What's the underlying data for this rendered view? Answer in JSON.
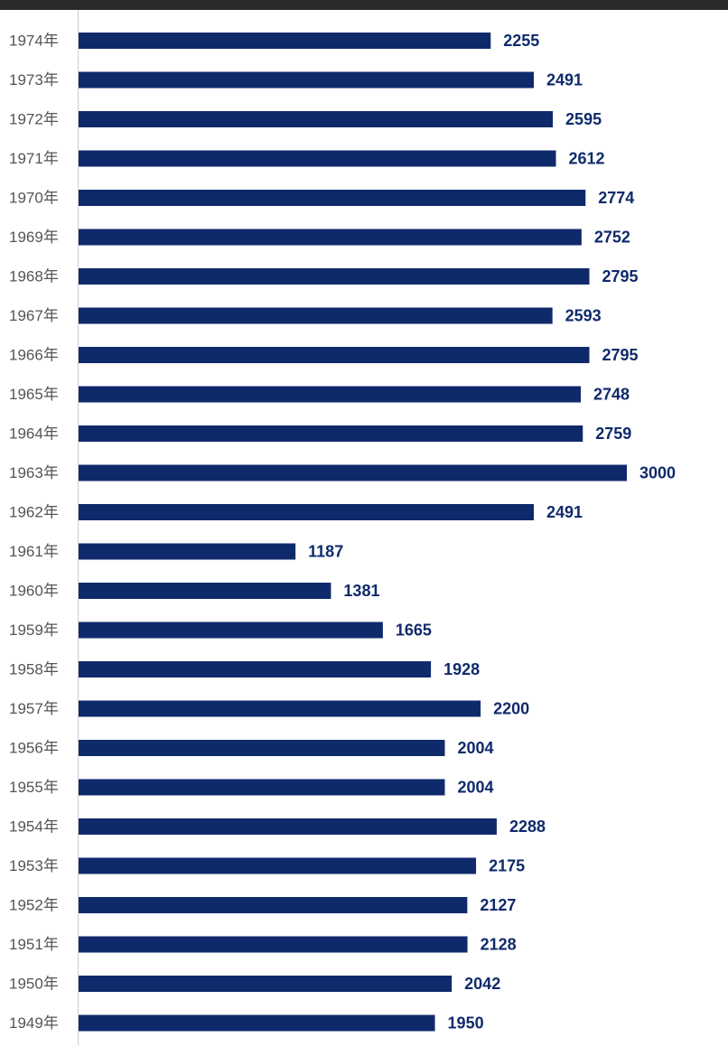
{
  "chart_data": {
    "type": "bar",
    "orientation": "horizontal",
    "title": "",
    "xlabel": "",
    "ylabel": "",
    "category_suffix": "年",
    "categories": [
      "1974",
      "1973",
      "1972",
      "1971",
      "1970",
      "1969",
      "1968",
      "1967",
      "1966",
      "1965",
      "1964",
      "1963",
      "1962",
      "1961",
      "1960",
      "1959",
      "1958",
      "1957",
      "1956",
      "1955",
      "1954",
      "1953",
      "1952",
      "1951",
      "1950",
      "1949"
    ],
    "values": [
      2255,
      2491,
      2595,
      2612,
      2774,
      2752,
      2795,
      2593,
      2795,
      2748,
      2759,
      3000,
      2491,
      1187,
      1381,
      1665,
      1928,
      2200,
      2004,
      2004,
      2288,
      2175,
      2127,
      2128,
      2042,
      1950
    ],
    "xlim": [
      0,
      3000
    ],
    "grid": false,
    "data_labels": true,
    "bar_color": "#0f2a6b"
  }
}
